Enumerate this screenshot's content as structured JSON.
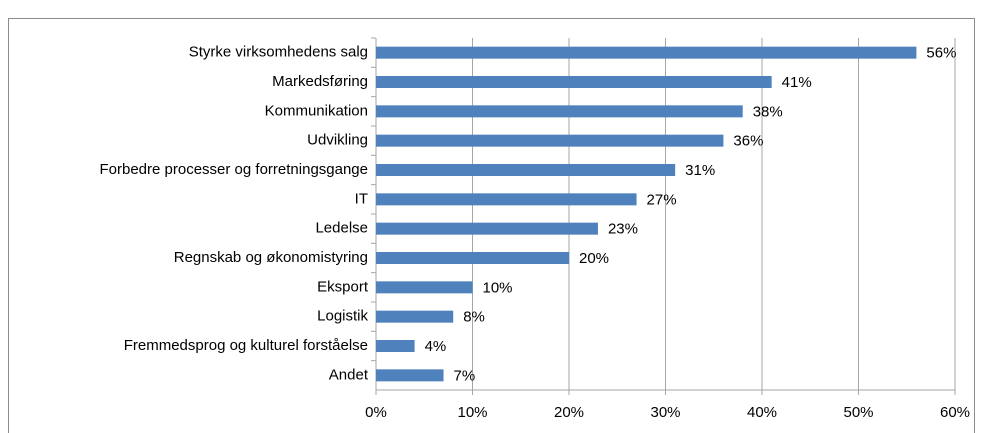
{
  "chart_data": {
    "type": "bar",
    "orientation": "horizontal",
    "categories": [
      "Styrke virksomhedens salg",
      "Markedsføring",
      "Kommunikation",
      "Udvikling",
      "Forbedre processer og forretningsgange",
      "IT",
      "Ledelse",
      "Regnskab og økonomistyring",
      "Eksport",
      "Logistik",
      "Fremmedsprog og kulturel forståelse",
      "Andet"
    ],
    "values": [
      56,
      41,
      38,
      36,
      31,
      27,
      23,
      20,
      10,
      8,
      4,
      7
    ],
    "value_labels": [
      "56%",
      "41%",
      "38%",
      "36%",
      "31%",
      "27%",
      "23%",
      "20%",
      "10%",
      "8%",
      "4%",
      "7%"
    ],
    "color": "#4f81bd",
    "xlim": [
      0,
      60
    ],
    "xticks": [
      {
        "value": 0,
        "label": "0%"
      },
      {
        "value": 10,
        "label": "10%"
      },
      {
        "value": 20,
        "label": "20%"
      },
      {
        "value": 30,
        "label": "30%"
      },
      {
        "value": 40,
        "label": "40%"
      },
      {
        "value": 50,
        "label": "50%"
      },
      {
        "value": 60,
        "label": "60%"
      }
    ],
    "grid": true
  }
}
